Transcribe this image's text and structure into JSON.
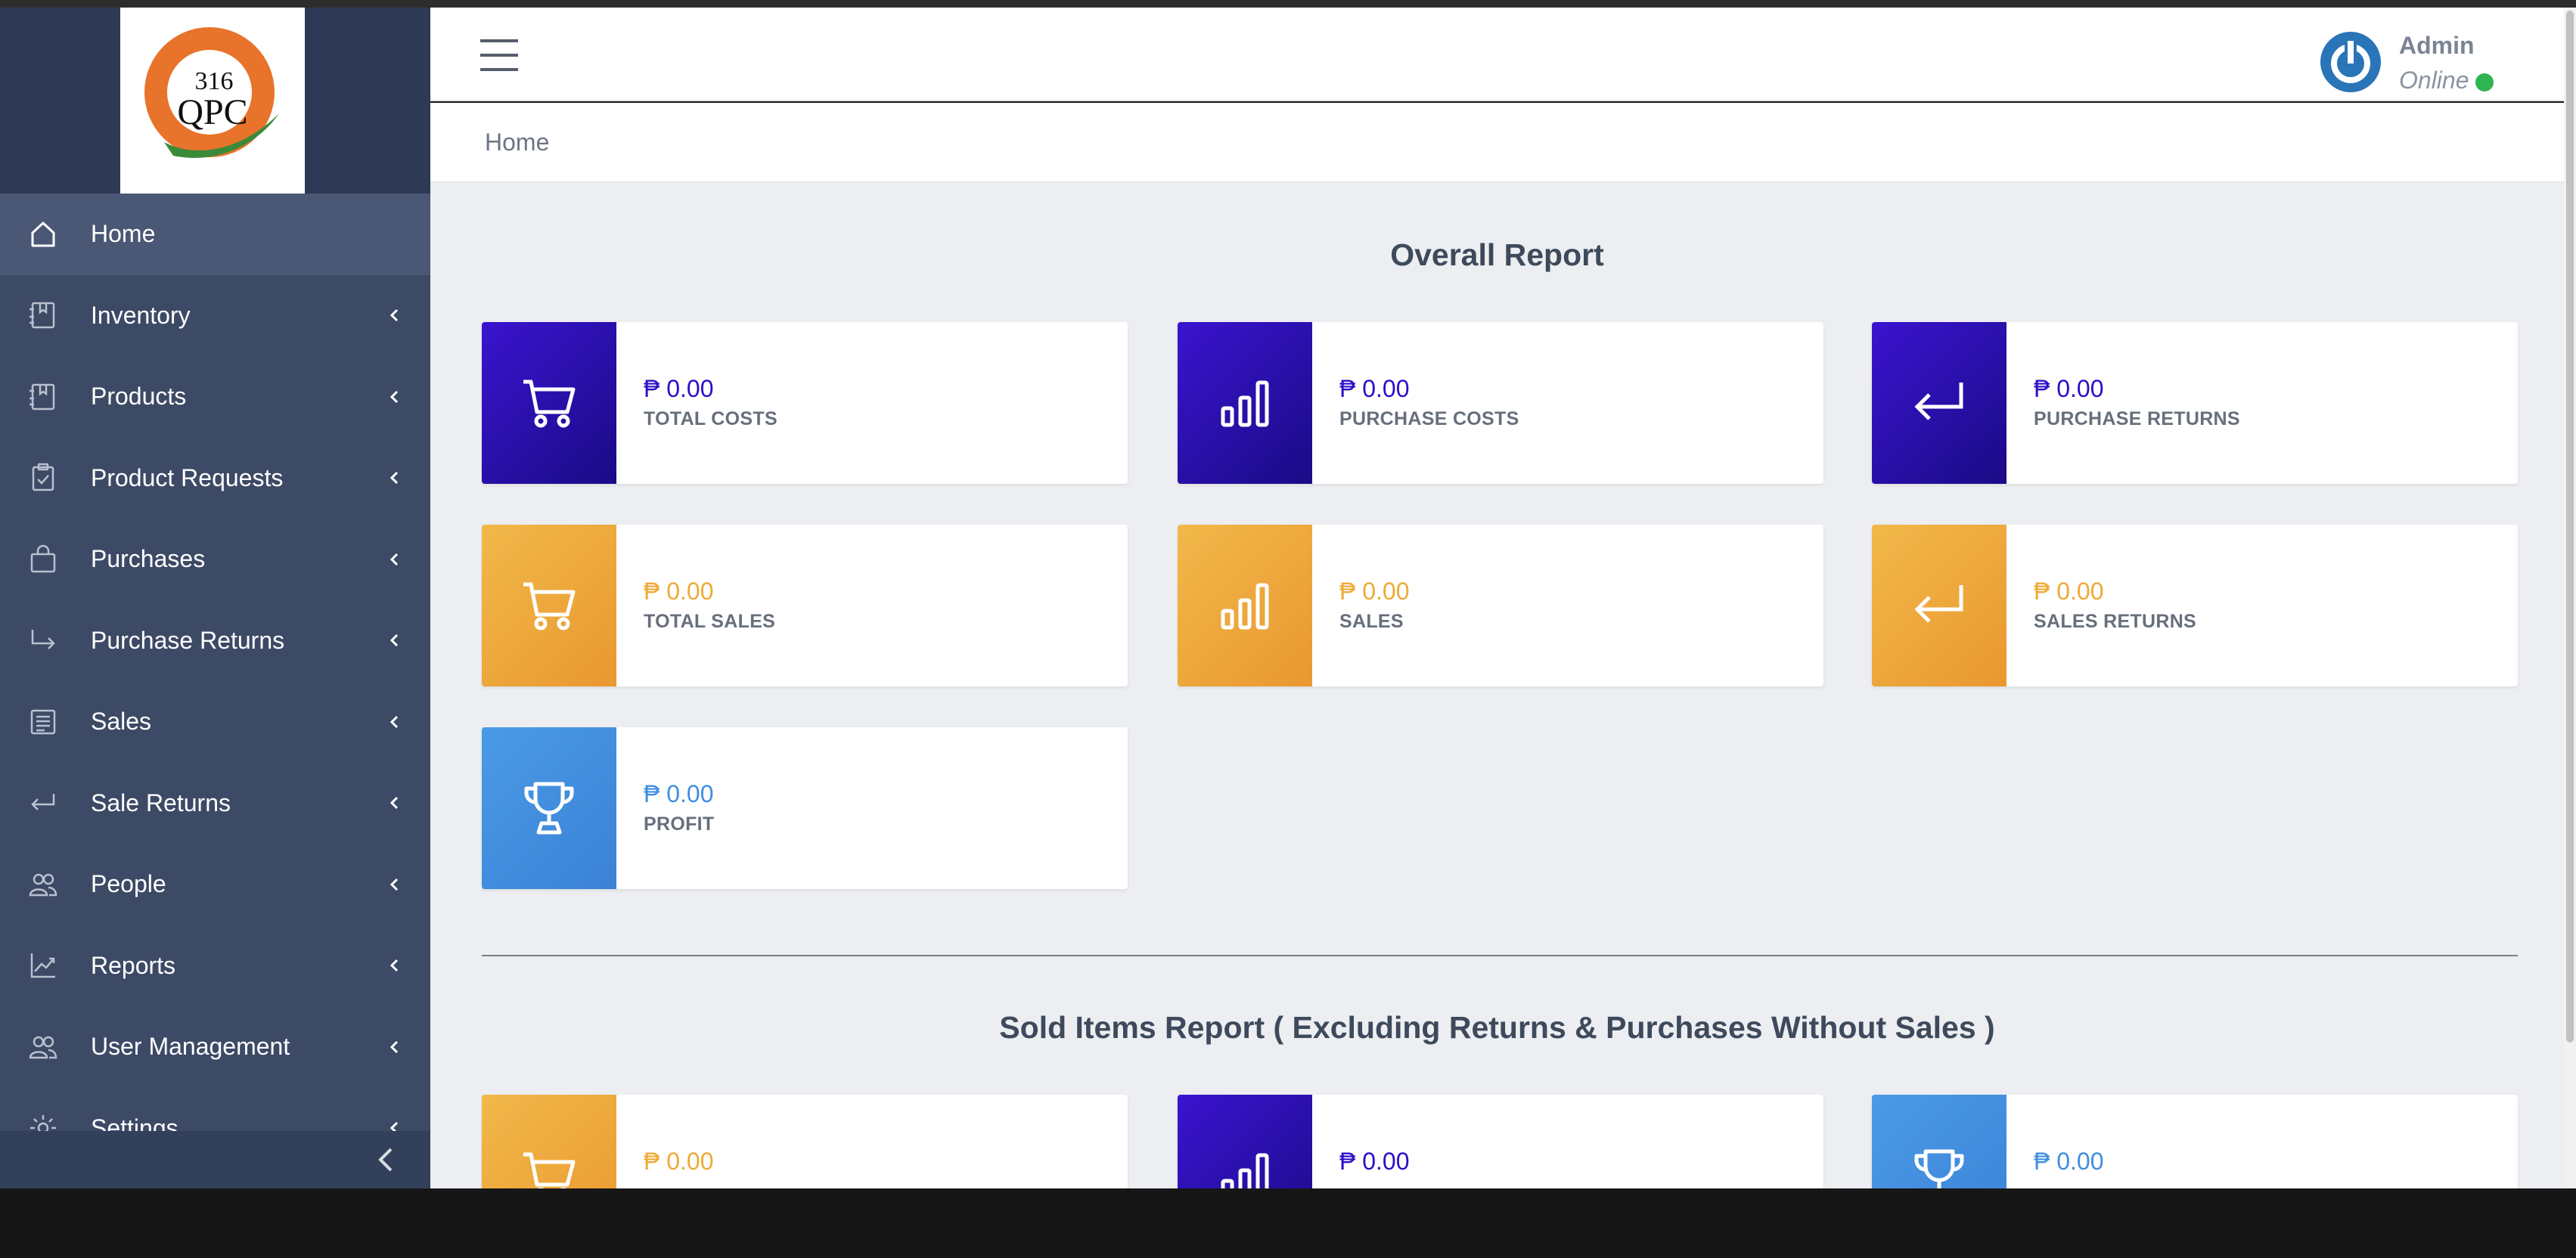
{
  "colors": {
    "sidebar": "#3d4a66",
    "blue_accent": "#2a0fc7",
    "orange_accent": "#eeaa36",
    "lightblue_accent": "#3f8fe0",
    "online_dot": "#2eb450"
  },
  "logo": {
    "number": "316",
    "text": "QPC"
  },
  "sidebar": {
    "items": [
      {
        "label": "Home",
        "icon": "home-icon"
      },
      {
        "label": "Inventory",
        "icon": "book-icon"
      },
      {
        "label": "Products",
        "icon": "book-icon"
      },
      {
        "label": "Product Requests",
        "icon": "clipboard-check-icon"
      },
      {
        "label": "Purchases",
        "icon": "bag-icon"
      },
      {
        "label": "Purchase Returns",
        "icon": "arrow-return-right-icon"
      },
      {
        "label": "Sales",
        "icon": "receipt-icon"
      },
      {
        "label": "Sale Returns",
        "icon": "arrow-return-left-icon"
      },
      {
        "label": "People",
        "icon": "people-icon"
      },
      {
        "label": "Reports",
        "icon": "graph-up-icon"
      },
      {
        "label": "User Management",
        "icon": "people-icon"
      },
      {
        "label": "Settings",
        "icon": "gear-icon"
      }
    ]
  },
  "user": {
    "name": "Admin",
    "status": "Online"
  },
  "breadcrumb": {
    "current": "Home"
  },
  "overall": {
    "title": "Overall Report",
    "cards": [
      {
        "value": "₱ 0.00",
        "label": "TOTAL COSTS",
        "icon": "cart-icon",
        "color": "blue"
      },
      {
        "value": "₱ 0.00",
        "label": "PURCHASE COSTS",
        "icon": "bar-chart-icon",
        "color": "blue"
      },
      {
        "value": "₱ 0.00",
        "label": "PURCHASE RETURNS",
        "icon": "return-arrow-icon",
        "color": "blue"
      },
      {
        "value": "₱ 0.00",
        "label": "TOTAL SALES",
        "icon": "cart-icon",
        "color": "orange"
      },
      {
        "value": "₱ 0.00",
        "label": "SALES",
        "icon": "bar-chart-icon",
        "color": "orange"
      },
      {
        "value": "₱ 0.00",
        "label": "SALES RETURNS",
        "icon": "return-arrow-icon",
        "color": "orange"
      },
      {
        "value": "₱ 0.00",
        "label": "PROFIT",
        "icon": "trophy-icon",
        "color": "lightblue"
      }
    ]
  },
  "sold": {
    "title": "Sold Items Report ( Excluding Returns & Purchases Without Sales )",
    "cards": [
      {
        "value": "₱ 0.00",
        "icon": "cart-icon",
        "color": "orange"
      },
      {
        "value": "₱ 0.00",
        "icon": "bar-chart-icon",
        "color": "blue"
      },
      {
        "value": "₱ 0.00",
        "icon": "trophy-icon",
        "color": "lightblue"
      }
    ]
  }
}
